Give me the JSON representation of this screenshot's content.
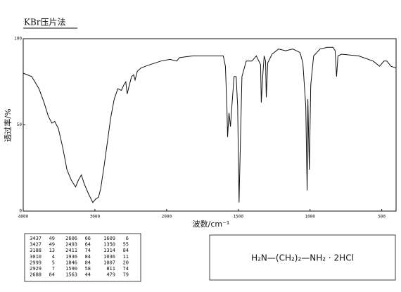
{
  "chart_data": {
    "type": "line",
    "title": "KBr压片法",
    "x_label": "波数/cm⁻¹",
    "y_label": "透过率/%",
    "xlim": [
      4000,
      400
    ],
    "ylim": [
      0,
      100
    ],
    "x_scale_break": 2000,
    "x_scale_expand": 2,
    "xticks": [
      4000,
      3000,
      2000,
      1500,
      1000,
      500
    ],
    "yticks": [
      0,
      50,
      100
    ],
    "grid": false,
    "color": "#111111",
    "x": [
      4000,
      3880,
      3780,
      3710,
      3650,
      3600,
      3560,
      3510,
      3450,
      3390,
      3330,
      3270,
      3230,
      3190,
      3150,
      3090,
      3030,
      2990,
      2950,
      2920,
      2880,
      2830,
      2780,
      2730,
      2680,
      2630,
      2600,
      2570,
      2550,
      2520,
      2490,
      2460,
      2440,
      2410,
      2360,
      2230,
      2080,
      1976,
      1930,
      1910,
      1820,
      1680,
      1605,
      1590,
      1580,
      1575,
      1565,
      1555,
      1545,
      1530,
      1515,
      1505,
      1495,
      1485,
      1475,
      1445,
      1405,
      1375,
      1345,
      1340,
      1330,
      1320,
      1310,
      1305,
      1295,
      1265,
      1220,
      1170,
      1120,
      1070,
      1050,
      1030,
      1020,
      1015,
      1005,
      995,
      975,
      930,
      880,
      840,
      825,
      815,
      805,
      780,
      660,
      560,
      515,
      485,
      465,
      435,
      400
    ],
    "values": [
      80,
      78,
      71,
      63,
      55,
      51,
      52,
      48,
      37,
      24,
      18,
      14,
      18,
      21,
      16,
      10,
      5,
      7,
      8,
      13,
      24,
      39,
      54,
      65,
      71,
      70,
      73,
      75,
      68,
      73,
      78,
      79,
      76,
      81,
      83,
      85,
      87,
      88,
      87,
      89,
      90,
      90,
      90,
      84,
      61,
      43,
      57,
      49,
      61,
      78,
      78,
      61,
      5,
      41,
      78,
      87,
      87,
      90,
      85,
      63,
      78,
      90,
      87,
      66,
      86,
      91,
      94,
      93,
      94,
      92,
      86,
      61,
      12,
      65,
      24,
      73,
      90,
      94,
      95,
      95,
      93,
      78,
      90,
      91,
      90,
      87,
      84,
      87,
      87,
      84,
      83
    ]
  },
  "peak_table": {
    "rows": [
      [
        "3437",
        "49",
        "2606",
        "66",
        "1609",
        "6"
      ],
      [
        "3427",
        "49",
        "2493",
        "64",
        "1350",
        "55"
      ],
      [
        "3188",
        "13",
        "2411",
        "74",
        "1314",
        "84"
      ],
      [
        "3010",
        "4",
        "1936",
        "84",
        "1036",
        "11"
      ],
      [
        "2999",
        "5",
        "1846",
        "84",
        "1007",
        "20"
      ],
      [
        "2929",
        "7",
        "1590",
        "58",
        "811",
        "74"
      ],
      [
        "2688",
        "64",
        "1563",
        "44",
        "479",
        "79"
      ]
    ]
  },
  "formula": "H₂N—(CH₂)₂—NH₂  ·  2HCl"
}
